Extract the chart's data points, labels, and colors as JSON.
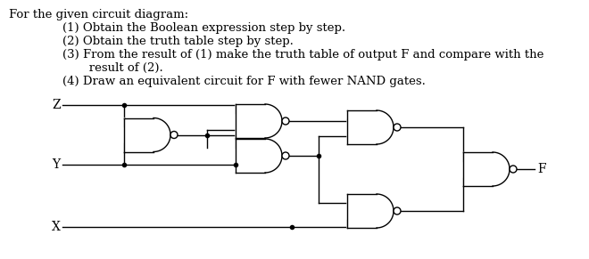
{
  "title_text": "For the given circuit diagram:",
  "item1": "(1) Obtain the Boolean expression step by step.",
  "item2": "(2) Obtain the truth table step by step.",
  "item3a": "(3) From the result of (1) make the truth table of output F and compare with the",
  "item3b": "       result of (2).",
  "item4": "(4) Draw an equivalent circuit for F with fewer NAND gates.",
  "input_labels": [
    "Z",
    "Y",
    "X"
  ],
  "output_label": "F",
  "bg_color": "#ffffff",
  "line_color": "#000000",
  "gate_fill": "#ffffff",
  "text_color": "#000000",
  "font_size": 9.5,
  "title_font_size": 9.5
}
